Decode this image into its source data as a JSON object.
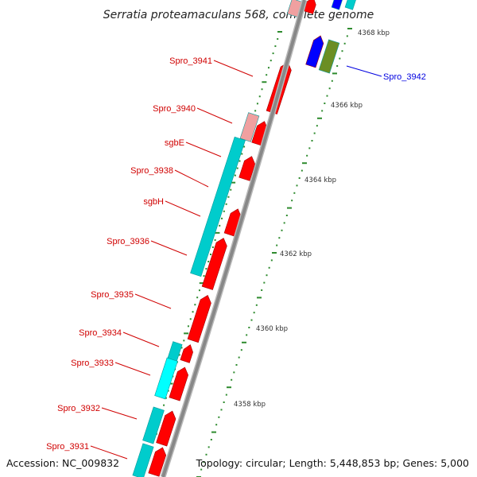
{
  "title": "Serratia proteamaculans 568, complete genome",
  "footer": {
    "accession": "Accession: NC_009832",
    "summary": "Topology: circular; Length: 5,448,853 bp; Genes: 5,000"
  },
  "colors": {
    "cds_forward": "#ff0000",
    "cds_reverse": "#0000ff",
    "cds_faded": "#f0a0a0",
    "olive_feature": "#6b8e23",
    "cyan_feature": "#00cccc",
    "backbone": "#888888",
    "tick": "#2e8b2e",
    "label_red": "#d00000",
    "label_blue": "#0000e0"
  },
  "scale_labels": [
    "4368 kbp",
    "4366 kbp",
    "4364 kbp",
    "4362 kbp",
    "4360 kbp",
    "4358 kbp"
  ],
  "gene_labels": [
    {
      "text": "Spro_3941",
      "color": "red"
    },
    {
      "text": "Spro_3940",
      "color": "red"
    },
    {
      "text": "sgbE",
      "color": "red"
    },
    {
      "text": "Spro_3938",
      "color": "red"
    },
    {
      "text": "sgbH",
      "color": "red"
    },
    {
      "text": "Spro_3936",
      "color": "red"
    },
    {
      "text": "Spro_3935",
      "color": "red"
    },
    {
      "text": "Spro_3934",
      "color": "red"
    },
    {
      "text": "Spro_3933",
      "color": "red"
    },
    {
      "text": "Spro_3932",
      "color": "red"
    },
    {
      "text": "Spro_3931",
      "color": "red"
    },
    {
      "text": "Spro_3942",
      "color": "blue"
    }
  ]
}
